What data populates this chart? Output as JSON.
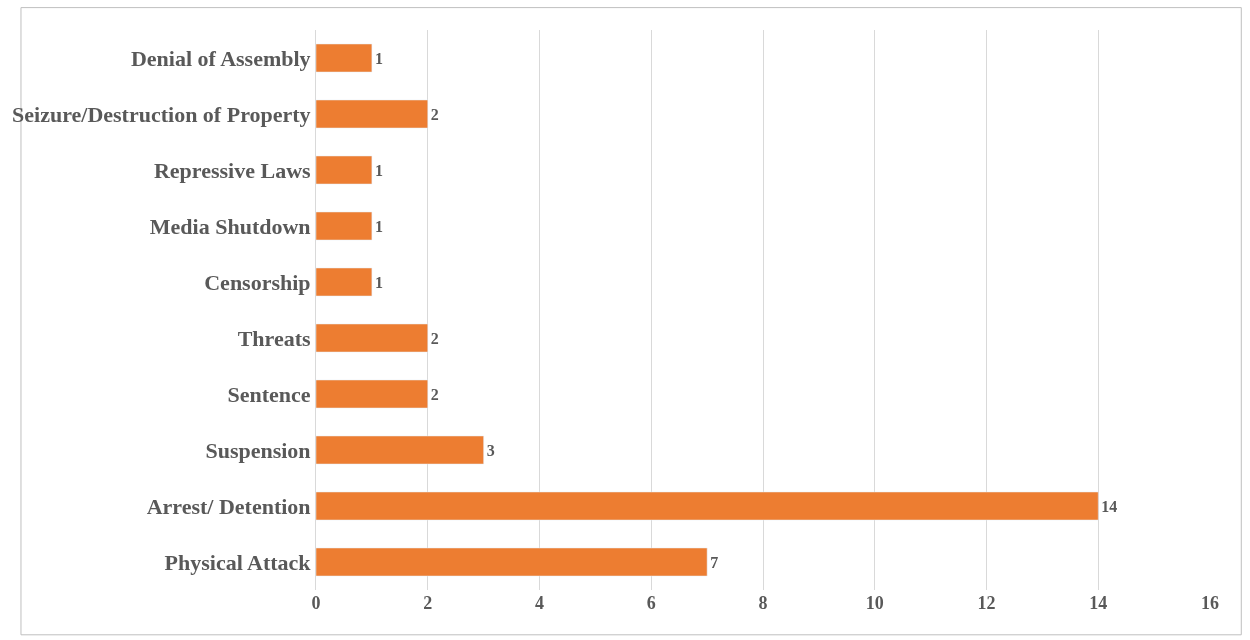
{
  "chart_data": {
    "type": "bar",
    "orientation": "horizontal",
    "categories": [
      "Denial of Assembly",
      "Seizure/Destruction of Property",
      "Repressive Laws",
      "Media Shutdown",
      "Censorship",
      "Threats",
      "Sentence",
      "Suspension",
      "Arrest/ Detention",
      "Physical Attack"
    ],
    "values": [
      1,
      2,
      1,
      1,
      1,
      2,
      2,
      3,
      14,
      7
    ],
    "color": "#ed7d31",
    "xlim": [
      0,
      16
    ],
    "xticks": [
      0,
      2,
      4,
      6,
      8,
      10,
      12,
      14,
      16
    ],
    "grid": "x",
    "data_labels": true
  }
}
